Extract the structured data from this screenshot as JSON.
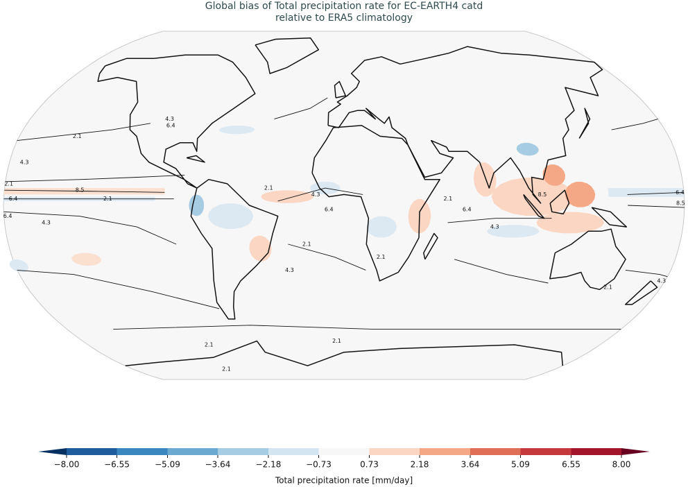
{
  "map": {
    "title": [
      "Global bias of Total precipitation rate for EC-EARTH4 catd",
      "relative to ERA5 climatology"
    ],
    "contour_levels": [
      2.1,
      4.3,
      6.4,
      8.5
    ],
    "colorbar": {
      "label": "Total precipitation rate [mm/day]",
      "ticks": [
        {
          "value": -8,
          "label": "−8.00"
        },
        {
          "value": -6.55,
          "label": "−6.55"
        },
        {
          "value": -5.09,
          "label": "−5.09"
        },
        {
          "value": -3.64,
          "label": "−3.64"
        },
        {
          "value": -2.18,
          "label": "−2.18"
        },
        {
          "value": -0.73,
          "label": "−0.73"
        },
        0.73,
        2.18,
        3.64,
        5.09,
        6.55,
        {
          "value": 8,
          "label": "8.00"
        }
      ],
      "colors": [
        "#1f5c9e",
        "#3a87bf",
        "#6ba9d0",
        "#a5cce3",
        "#d3e5f0",
        "#f7f7f7",
        "#fbd6c2",
        "#f4a886",
        "#de6f55",
        "#c5383c",
        "#a3162a"
      ],
      "extend_colors": [
        "#053061",
        "#67001f"
      ]
    }
  }
}
